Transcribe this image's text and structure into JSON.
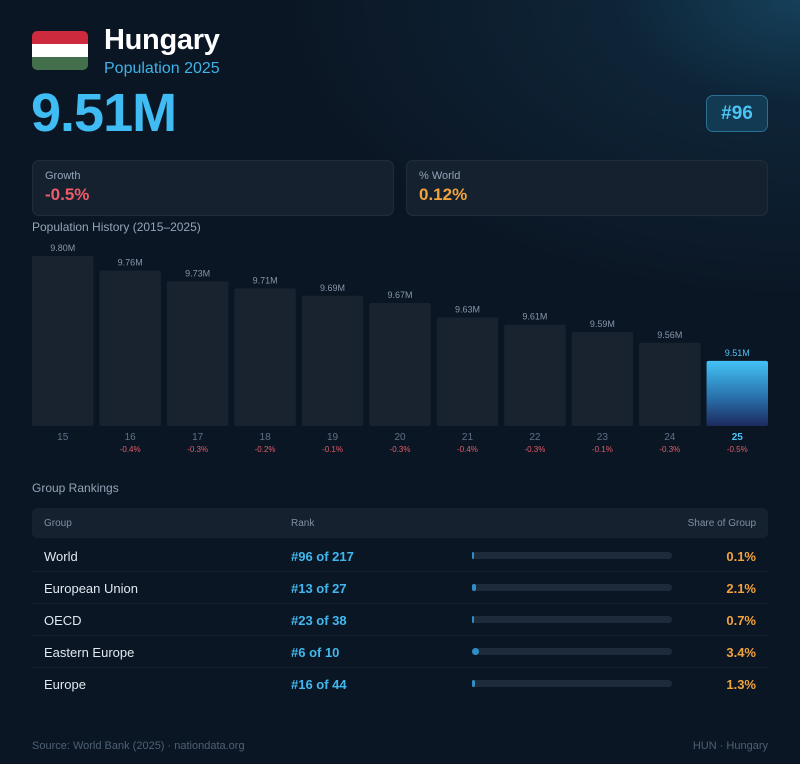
{
  "header": {
    "country": "Hungary",
    "subtitle": "Population 2025",
    "population": "9.51M",
    "rank_badge": "#96",
    "flag_colors": [
      "#cd2a3e",
      "#ffffff",
      "#436f4d"
    ]
  },
  "cards": {
    "growth_label": "Growth",
    "growth_value": "-0.5%",
    "world_label": "% World",
    "world_value": "0.12%"
  },
  "colors": {
    "accent": "#3ebcf3",
    "negative": "#ef5b66",
    "share": "#f2a33b"
  },
  "chart_data": {
    "type": "bar",
    "title": "Population History (2015–2025)",
    "categories": [
      "15",
      "16",
      "17",
      "18",
      "19",
      "20",
      "21",
      "22",
      "23",
      "24",
      "25"
    ],
    "values": [
      9.8,
      9.76,
      9.73,
      9.71,
      9.69,
      9.67,
      9.63,
      9.61,
      9.59,
      9.56,
      9.51
    ],
    "value_labels": [
      "9.80M",
      "9.76M",
      "9.73M",
      "9.71M",
      "9.69M",
      "9.67M",
      "9.63M",
      "9.61M",
      "9.59M",
      "9.56M",
      "9.51M"
    ],
    "change_labels": [
      "",
      "-0.4%",
      "-0.3%",
      "-0.2%",
      "-0.1%",
      "-0.3%",
      "-0.4%",
      "-0.3%",
      "-0.1%",
      "-0.3%",
      "-0.5%"
    ],
    "highlight": "25",
    "unit": "M"
  },
  "rankings": {
    "title": "Group Rankings",
    "columns": [
      "Group",
      "Rank",
      "Share of Group"
    ],
    "rows": [
      {
        "group": "World",
        "rank": "#96 of 217",
        "share": "0.1%",
        "share_value": 0.1
      },
      {
        "group": "European Union",
        "rank": "#13 of 27",
        "share": "2.1%",
        "share_value": 2.1
      },
      {
        "group": "OECD",
        "rank": "#23 of 38",
        "share": "0.7%",
        "share_value": 0.7
      },
      {
        "group": "Eastern Europe",
        "rank": "#6 of 10",
        "share": "3.4%",
        "share_value": 3.4
      },
      {
        "group": "Europe",
        "rank": "#16 of 44",
        "share": "1.3%",
        "share_value": 1.3
      }
    ]
  },
  "footer": {
    "source": "Source: World Bank (2025) · nationdata.org",
    "code": "HUN · Hungary"
  }
}
